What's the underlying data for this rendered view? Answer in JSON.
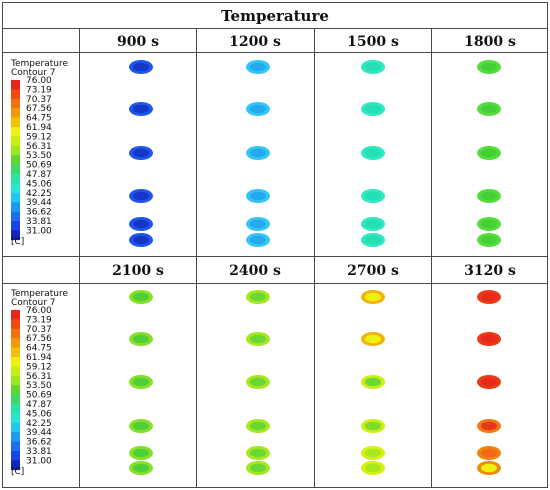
{
  "title": "Temperature",
  "legend": {
    "title_line1": "Temperature",
    "title_line2": "Contour 7",
    "unit": "[C]",
    "values": [
      "76.00",
      "73.19",
      "70.37",
      "67.56",
      "64.75",
      "61.94",
      "59.12",
      "56.31",
      "53.50",
      "50.69",
      "47.87",
      "45.06",
      "42.25",
      "39.44",
      "36.62",
      "33.81",
      "31.00"
    ],
    "colors": [
      "#e8251a",
      "#f04a12",
      "#f4700c",
      "#f29a0a",
      "#f3c10b",
      "#eef00f",
      "#c6ef12",
      "#9be720",
      "#5fd635",
      "#3ad96a",
      "#2ce3a4",
      "#27e7d2",
      "#22c6f1",
      "#1f9af0",
      "#1d6fee",
      "#1a44e3",
      "#1423b8"
    ]
  },
  "panels": [
    {
      "times": [
        "900 s",
        "1200 s",
        "1500 s",
        "1800 s"
      ],
      "columns": [
        {
          "outer": "#1d56e8",
          "inner": "#1636c9"
        },
        {
          "outer": "#33c6f4",
          "inner": "#25a9ee"
        },
        {
          "outer": "#2ee7c3",
          "inner": "#24dfb2"
        },
        {
          "outer": "#56dc3c",
          "inner": "#43cf36"
        }
      ]
    },
    {
      "times": [
        "2100 s",
        "2400 s",
        "2700 s",
        "3120 s"
      ],
      "columns": [
        {
          "outer": "#86e02a",
          "inner": "#4fcf36"
        },
        {
          "outer": "#a6e722",
          "inner": "#6ad733"
        },
        {
          "outer": "#f2b30c",
          "inner": "#eef00f"
        },
        {
          "outer": "#eb3a16",
          "inner": "#e8281a"
        }
      ],
      "overrides": [
        {
          "col": 3,
          "row": 3,
          "outer": "#ef7a10",
          "inner": "#e8361a"
        },
        {
          "col": 3,
          "row": 4,
          "outer": "#f2820e",
          "inner": "#f06a12"
        },
        {
          "col": 3,
          "row": 5,
          "outer": "#f28a0c",
          "inner": "#eef00f"
        },
        {
          "col": 2,
          "row": 2,
          "outer": "#c9ef14",
          "inner": "#6ad733"
        },
        {
          "col": 2,
          "row": 3,
          "outer": "#c9ef14",
          "inner": "#7bdc2e"
        },
        {
          "col": 2,
          "row": 4,
          "outer": "#d7f010",
          "inner": "#a6e722"
        },
        {
          "col": 2,
          "row": 5,
          "outer": "#d7f010",
          "inner": "#a6e722"
        }
      ]
    }
  ]
}
